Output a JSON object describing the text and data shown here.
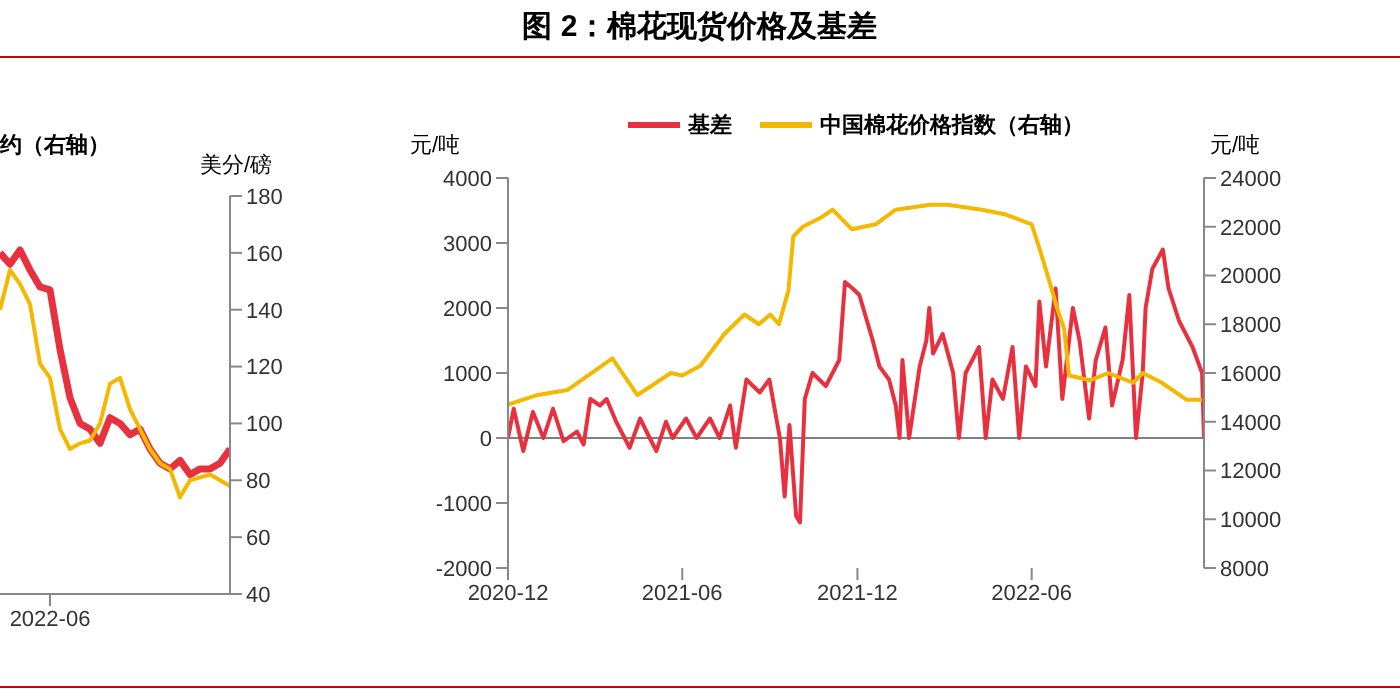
{
  "chart_data": [
    {
      "type": "line",
      "annotations": [
        "约（右轴）"
      ],
      "y2label": "美分/磅",
      "categories": [
        null,
        null,
        null,
        null,
        null,
        "2022-06",
        null,
        null,
        null,
        null,
        null,
        null,
        null,
        null,
        null,
        null,
        null,
        null,
        null,
        null,
        null,
        null,
        null,
        null
      ],
      "series": [
        {
          "color": "#e8313f",
          "axis": "y2",
          "values": [
            160,
            156,
            161,
            154,
            148,
            147,
            126,
            109,
            100,
            98,
            93,
            102,
            100,
            96,
            98,
            91,
            86,
            84,
            87,
            82,
            84,
            84,
            86,
            91
          ]
        },
        {
          "color": "#f5b800",
          "axis": "y2",
          "values": [
            140,
            154,
            149,
            142,
            121,
            116,
            98,
            91,
            93,
            94,
            100,
            114,
            116,
            105,
            98,
            91,
            86,
            84,
            74,
            80,
            81,
            82,
            80,
            78
          ]
        }
      ],
      "y2lim": [
        40,
        180
      ],
      "y2ticks": [
        40,
        60,
        80,
        100,
        120,
        140,
        160,
        180
      ]
    },
    {
      "type": "line",
      "title": "图 2：棉花现货价格及基差",
      "ylabel": "元/吨",
      "y2label": "元/吨",
      "xlim": [
        "2020-12-01",
        "2022-11-28"
      ],
      "xticks": [
        "2020-12",
        "2021-06",
        "2021-12",
        "2022-06"
      ],
      "ylim": [
        -2000,
        4000
      ],
      "yticks": [
        -2000,
        -1000,
        0,
        1000,
        2000,
        3000,
        4000
      ],
      "y2lim": [
        8000,
        24000
      ],
      "y2ticks": [
        8000,
        10000,
        12000,
        14000,
        16000,
        18000,
        20000,
        22000,
        24000
      ],
      "ref_lines": [
        {
          "axis": "y",
          "value": 0,
          "color": "#808080"
        }
      ],
      "series": [
        {
          "name": "基差",
          "color": "#e8313f",
          "x": [
            "2020-12-01",
            "2020-12-07",
            "2020-12-17",
            "2020-12-27",
            "2021-01-07",
            "2021-01-17",
            "2021-01-28",
            "2021-02-11",
            "2021-02-18",
            "2021-02-25",
            "2021-03-07",
            "2021-03-14",
            "2021-03-24",
            "2021-04-07",
            "2021-04-18",
            "2021-04-28",
            "2021-05-05",
            "2021-05-15",
            "2021-05-22",
            "2021-06-05",
            "2021-06-16",
            "2021-06-30",
            "2021-07-10",
            "2021-07-21",
            "2021-07-27",
            "2021-08-07",
            "2021-08-21",
            "2021-08-31",
            "2021-09-11",
            "2021-09-16",
            "2021-09-21",
            "2021-09-28",
            "2021-10-02",
            "2021-10-07",
            "2021-10-15",
            "2021-10-29",
            "2021-11-12",
            "2021-11-18",
            "2021-11-26",
            "2021-12-03",
            "2021-12-17",
            "2021-12-24",
            "2022-01-03",
            "2022-01-10",
            "2022-01-14",
            "2022-01-17",
            "2022-01-24",
            "2022-02-04",
            "2022-02-11",
            "2022-02-14",
            "2022-02-18",
            "2022-02-28",
            "2022-03-11",
            "2022-03-17",
            "2022-03-24",
            "2022-04-07",
            "2022-04-14",
            "2022-04-21",
            "2022-05-02",
            "2022-05-12",
            "2022-05-19",
            "2022-05-26",
            "2022-06-05",
            "2022-06-09",
            "2022-06-16",
            "2022-06-26",
            "2022-07-03",
            "2022-07-14",
            "2022-07-21",
            "2022-07-31",
            "2022-08-07",
            "2022-08-17",
            "2022-08-24",
            "2022-09-04",
            "2022-09-11",
            "2022-09-18",
            "2022-09-25",
            "2022-09-28",
            "2022-10-05",
            "2022-10-16",
            "2022-10-22",
            "2022-11-02",
            "2022-11-16",
            "2022-11-26",
            "2022-11-28"
          ],
          "values": [
            0,
            450,
            -200,
            400,
            0,
            450,
            -50,
            100,
            -100,
            600,
            500,
            600,
            250,
            -150,
            300,
            0,
            -200,
            250,
            0,
            300,
            0,
            300,
            0,
            500,
            -150,
            900,
            700,
            900,
            0,
            -900,
            200,
            -1200,
            -1300,
            600,
            1000,
            800,
            1200,
            2400,
            2300,
            2200,
            1500,
            1100,
            900,
            500,
            0,
            1200,
            0,
            1100,
            1500,
            2000,
            1300,
            1600,
            1000,
            0,
            1000,
            1400,
            0,
            900,
            600,
            1400,
            0,
            1100,
            800,
            2100,
            1100,
            2300,
            600,
            2000,
            1500,
            300,
            1200,
            1700,
            500,
            1200,
            2200,
            0,
            1000,
            2000,
            2600,
            2900,
            2300,
            1800,
            1400,
            1000,
            0
          ]
        },
        {
          "name": "中国棉花价格指数（右轴）",
          "color": "#f5b800",
          "axis": "y2",
          "x": [
            "2020-12-01",
            "2021-01-01",
            "2021-02-01",
            "2021-03-20",
            "2021-04-15",
            "2021-05-01",
            "2021-05-20",
            "2021-06-01",
            "2021-06-20",
            "2021-07-15",
            "2021-08-05",
            "2021-08-20",
            "2021-09-01",
            "2021-09-10",
            "2021-09-20",
            "2021-09-25",
            "2021-10-05",
            "2021-10-25",
            "2021-11-05",
            "2021-11-25",
            "2021-12-20",
            "2022-01-10",
            "2022-02-15",
            "2022-03-05",
            "2022-04-10",
            "2022-05-05",
            "2022-06-01",
            "2022-06-10",
            "2022-06-20",
            "2022-06-28",
            "2022-07-05",
            "2022-07-10",
            "2022-08-01",
            "2022-08-20",
            "2022-09-15",
            "2022-09-25",
            "2022-10-15",
            "2022-11-10",
            "2022-11-26"
          ],
          "values": [
            14700,
            15100,
            15300,
            16600,
            15100,
            15500,
            16000,
            15900,
            16300,
            17600,
            18400,
            18000,
            18400,
            18000,
            19400,
            21600,
            22000,
            22400,
            22700,
            21900,
            22100,
            22700,
            22900,
            22900,
            22700,
            22500,
            22100,
            21000,
            19700,
            18600,
            17800,
            15900,
            15700,
            16000,
            15600,
            16000,
            15600,
            14900,
            14900
          ]
        }
      ],
      "legend": "top"
    }
  ]
}
